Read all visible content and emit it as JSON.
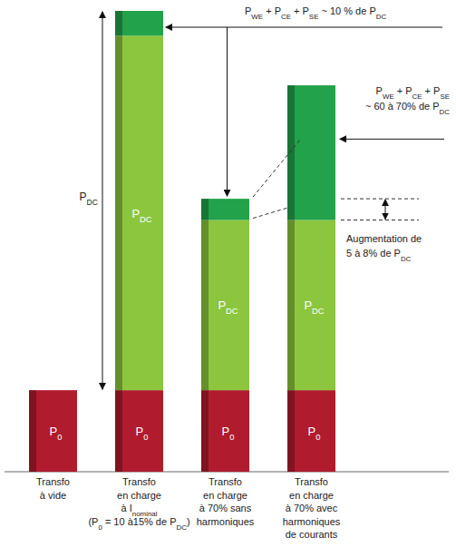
{
  "chart_data": {
    "type": "bar",
    "stacked": true,
    "tick_labels": "x",
    "categories": [
      "Transfo\nà vide",
      "Transfo\nen charge\nà Inominal\n(P0 = 10 à15% de PDC)",
      "Transfo\nen charge\nà 70% sans\nharmoniques",
      "Transfo\nen charge\nà 70% avec\nharmoniques\nde courants"
    ],
    "series": [
      {
        "name": "P0",
        "color": "#b01c2e",
        "values": [
          23,
          23,
          23,
          23
        ]
      },
      {
        "name": "PDC",
        "color": "#8cc63e",
        "values": [
          0,
          100,
          48,
          48
        ]
      },
      {
        "name": "PWE + PCE + PSE",
        "color": "#22a24a",
        "values": [
          0,
          7,
          6,
          38
        ]
      }
    ],
    "ylim": [
      0,
      130
    ],
    "annotations": [
      "PDC",
      "PWE + PCE + PSE ~ 10 % de PDC",
      "PWE + PCE + PSE",
      "~ 60 à 70% de PDC",
      "Augmentation de",
      "5 à 8% de PDC"
    ]
  }
}
